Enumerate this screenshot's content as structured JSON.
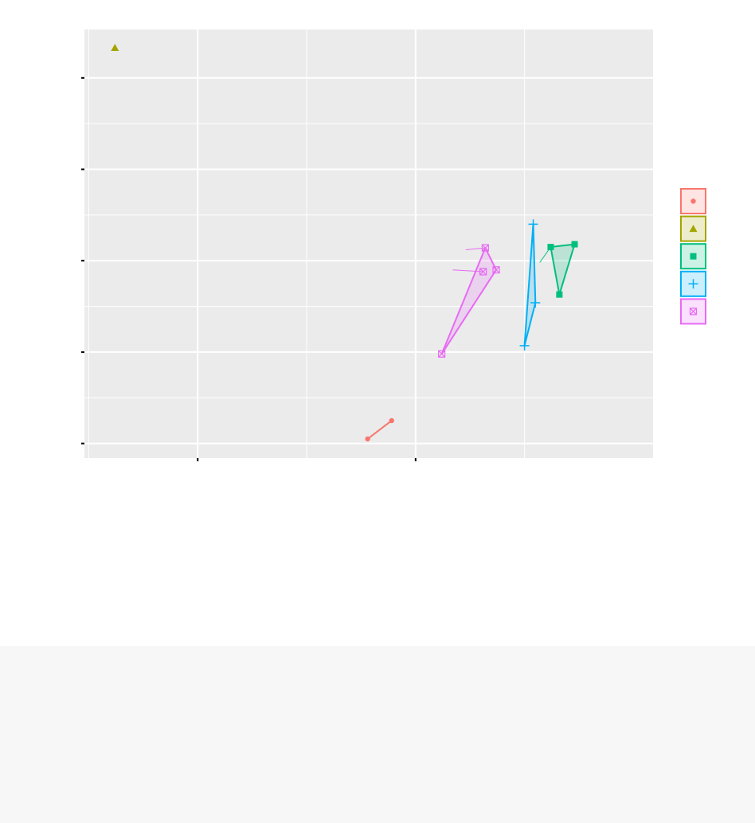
{
  "chart_data": {
    "type": "scatter",
    "title": "",
    "xlabel": "",
    "ylabel": "",
    "xlim": [
      -0.52,
      2.09
    ],
    "ylim": [
      -0.16,
      4.53
    ],
    "x_major_ticks": [
      0,
      1
    ],
    "x_minor_gridlines": [
      -0.5,
      0.5,
      1.5
    ],
    "y_major_ticks": [
      0,
      1,
      2,
      3,
      4
    ],
    "y_minor_gridlines": [
      0.5,
      1.5,
      2.5,
      3.5
    ],
    "grid": true,
    "legend": {
      "position": "right"
    },
    "series": [
      {
        "color": "#F8766D",
        "marker": "circle",
        "points": [
          [
            0.78,
            0.05
          ],
          [
            0.89,
            0.25
          ]
        ],
        "hull": [
          [
            0.78,
            0.05
          ],
          [
            0.89,
            0.25
          ]
        ]
      },
      {
        "color": "#A3A500",
        "marker": "triangle",
        "points": [
          [
            -0.38,
            4.33
          ]
        ],
        "hull": []
      },
      {
        "color": "#00BF7D",
        "marker": "square",
        "points": [
          [
            1.62,
            2.15
          ],
          [
            1.73,
            2.18
          ],
          [
            1.66,
            1.63
          ]
        ],
        "hull": [
          [
            1.62,
            2.15
          ],
          [
            1.73,
            2.18
          ],
          [
            1.66,
            1.63
          ]
        ],
        "leaders": [
          [
            [
              1.57,
              1.98
            ],
            [
              1.62,
              2.15
            ]
          ]
        ]
      },
      {
        "color": "#00B0F6",
        "marker": "plus",
        "points": [
          [
            1.5,
            1.07
          ],
          [
            1.54,
            2.4
          ],
          [
            1.55,
            1.54
          ]
        ],
        "hull": [
          [
            1.5,
            1.07
          ],
          [
            1.54,
            2.4
          ],
          [
            1.55,
            1.54
          ]
        ]
      },
      {
        "color": "#E76BF3",
        "marker": "boxx",
        "points": [
          [
            1.12,
            0.98
          ],
          [
            1.32,
            2.14
          ],
          [
            1.31,
            1.88
          ],
          [
            1.37,
            1.9
          ]
        ],
        "hull": [
          [
            1.12,
            0.98
          ],
          [
            1.32,
            2.14
          ],
          [
            1.37,
            1.9
          ]
        ],
        "leaders": [
          [
            [
              1.23,
              2.12
            ],
            [
              1.32,
              2.14
            ]
          ],
          [
            [
              1.17,
              1.9
            ],
            [
              1.31,
              1.88
            ]
          ]
        ]
      }
    ]
  }
}
